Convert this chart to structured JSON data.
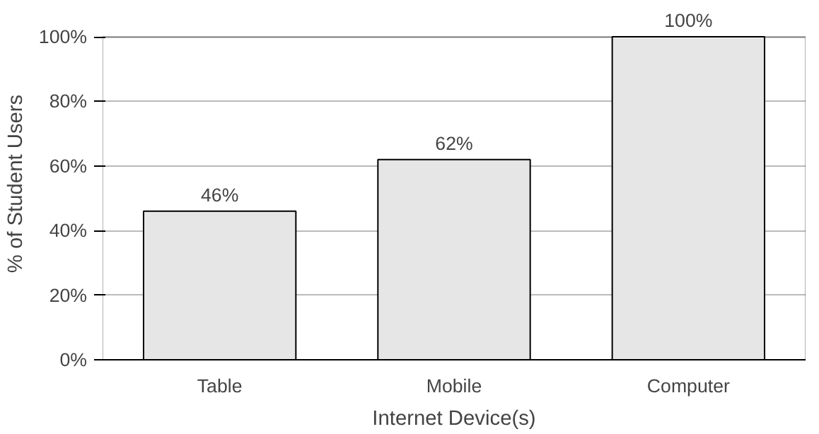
{
  "chart_data": {
    "type": "bar",
    "xlabel": "Internet Device(s)",
    "ylabel": "% of Student Users",
    "categories": [
      "Table",
      "Mobile",
      "Computer"
    ],
    "values": [
      46,
      62,
      100
    ],
    "color": "#e6e6e6",
    "value_labels": [
      "46%",
      "62%",
      "100%"
    ],
    "ylim": [
      0,
      100
    ],
    "yticks": [
      {
        "value": 0,
        "label": "0%"
      },
      {
        "value": 20,
        "label": "20%"
      },
      {
        "value": 40,
        "label": "40%"
      },
      {
        "value": 60,
        "label": "60%"
      },
      {
        "value": 80,
        "label": "80%"
      },
      {
        "value": 100,
        "label": "100%"
      }
    ],
    "grid": "y"
  }
}
